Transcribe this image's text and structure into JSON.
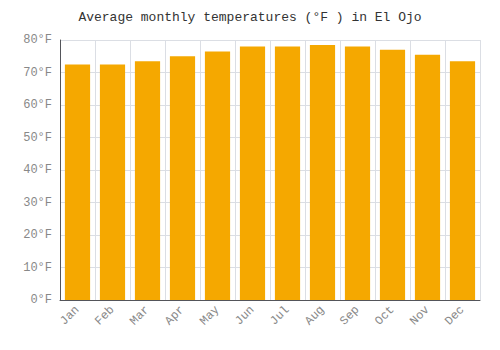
{
  "chart_data": {
    "type": "bar",
    "title": "Average monthly temperatures (°F ) in El Ojo",
    "categories": [
      "Jan",
      "Feb",
      "Mar",
      "Apr",
      "May",
      "Jun",
      "Jul",
      "Aug",
      "Sep",
      "Oct",
      "Nov",
      "Dec"
    ],
    "values": [
      72.5,
      72.5,
      73.5,
      75.0,
      76.5,
      78.0,
      78.0,
      78.5,
      78.0,
      77.0,
      75.5,
      73.5
    ],
    "color": "#F5A800",
    "ylim": [
      0,
      80
    ],
    "yticks": [
      {
        "value": 0,
        "label": "0°F"
      },
      {
        "value": 10,
        "label": "10°F"
      },
      {
        "value": 20,
        "label": "20°F"
      },
      {
        "value": 30,
        "label": "30°F"
      },
      {
        "value": 40,
        "label": "40°F"
      },
      {
        "value": 50,
        "label": "50°F"
      },
      {
        "value": 60,
        "label": "60°F"
      },
      {
        "value": 70,
        "label": "70°F"
      },
      {
        "value": 80,
        "label": "80°F"
      }
    ],
    "grid": true
  }
}
